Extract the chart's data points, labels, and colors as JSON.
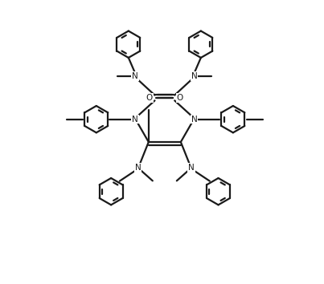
{
  "bg_color": "#ffffff",
  "line_color": "#1a1a1a",
  "lw": 1.6,
  "figsize": [
    4.03,
    3.54
  ],
  "dpi": 100,
  "xlim": [
    -1,
    11
  ],
  "ylim": [
    -0.5,
    9.5
  ]
}
